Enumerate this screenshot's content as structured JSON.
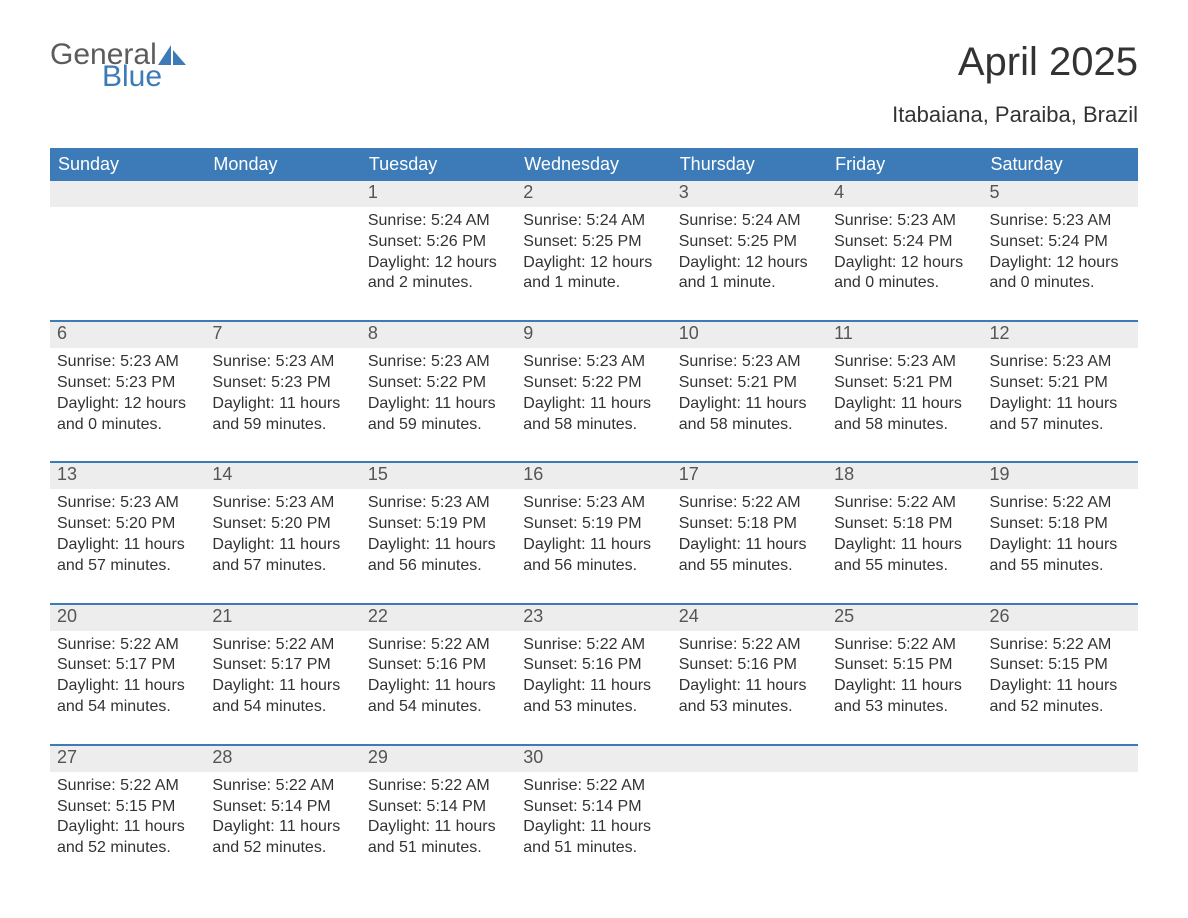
{
  "logo": {
    "word1": "General",
    "word2": "Blue",
    "word1_color": "#5c5c5c",
    "word2_color": "#3c7bb8"
  },
  "title": "April 2025",
  "location": "Itabaiana, Paraiba, Brazil",
  "colors": {
    "header_bg": "#3c7bb8",
    "header_text": "#ffffff",
    "daynum_bg": "#ededed",
    "daynum_text": "#555555",
    "body_text": "#333333",
    "week_border": "#3c7bb8",
    "page_bg": "#ffffff"
  },
  "fonts": {
    "title_size": 40,
    "location_size": 22,
    "weekday_size": 18,
    "daynum_size": 18,
    "body_size": 16
  },
  "weekdays": [
    "Sunday",
    "Monday",
    "Tuesday",
    "Wednesday",
    "Thursday",
    "Friday",
    "Saturday"
  ],
  "weeks": [
    [
      {
        "n": "",
        "sr": "",
        "ss": "",
        "dl": ""
      },
      {
        "n": "",
        "sr": "",
        "ss": "",
        "dl": ""
      },
      {
        "n": "1",
        "sr": "Sunrise: 5:24 AM",
        "ss": "Sunset: 5:26 PM",
        "dl": "Daylight: 12 hours and 2 minutes."
      },
      {
        "n": "2",
        "sr": "Sunrise: 5:24 AM",
        "ss": "Sunset: 5:25 PM",
        "dl": "Daylight: 12 hours and 1 minute."
      },
      {
        "n": "3",
        "sr": "Sunrise: 5:24 AM",
        "ss": "Sunset: 5:25 PM",
        "dl": "Daylight: 12 hours and 1 minute."
      },
      {
        "n": "4",
        "sr": "Sunrise: 5:23 AM",
        "ss": "Sunset: 5:24 PM",
        "dl": "Daylight: 12 hours and 0 minutes."
      },
      {
        "n": "5",
        "sr": "Sunrise: 5:23 AM",
        "ss": "Sunset: 5:24 PM",
        "dl": "Daylight: 12 hours and 0 minutes."
      }
    ],
    [
      {
        "n": "6",
        "sr": "Sunrise: 5:23 AM",
        "ss": "Sunset: 5:23 PM",
        "dl": "Daylight: 12 hours and 0 minutes."
      },
      {
        "n": "7",
        "sr": "Sunrise: 5:23 AM",
        "ss": "Sunset: 5:23 PM",
        "dl": "Daylight: 11 hours and 59 minutes."
      },
      {
        "n": "8",
        "sr": "Sunrise: 5:23 AM",
        "ss": "Sunset: 5:22 PM",
        "dl": "Daylight: 11 hours and 59 minutes."
      },
      {
        "n": "9",
        "sr": "Sunrise: 5:23 AM",
        "ss": "Sunset: 5:22 PM",
        "dl": "Daylight: 11 hours and 58 minutes."
      },
      {
        "n": "10",
        "sr": "Sunrise: 5:23 AM",
        "ss": "Sunset: 5:21 PM",
        "dl": "Daylight: 11 hours and 58 minutes."
      },
      {
        "n": "11",
        "sr": "Sunrise: 5:23 AM",
        "ss": "Sunset: 5:21 PM",
        "dl": "Daylight: 11 hours and 58 minutes."
      },
      {
        "n": "12",
        "sr": "Sunrise: 5:23 AM",
        "ss": "Sunset: 5:21 PM",
        "dl": "Daylight: 11 hours and 57 minutes."
      }
    ],
    [
      {
        "n": "13",
        "sr": "Sunrise: 5:23 AM",
        "ss": "Sunset: 5:20 PM",
        "dl": "Daylight: 11 hours and 57 minutes."
      },
      {
        "n": "14",
        "sr": "Sunrise: 5:23 AM",
        "ss": "Sunset: 5:20 PM",
        "dl": "Daylight: 11 hours and 57 minutes."
      },
      {
        "n": "15",
        "sr": "Sunrise: 5:23 AM",
        "ss": "Sunset: 5:19 PM",
        "dl": "Daylight: 11 hours and 56 minutes."
      },
      {
        "n": "16",
        "sr": "Sunrise: 5:23 AM",
        "ss": "Sunset: 5:19 PM",
        "dl": "Daylight: 11 hours and 56 minutes."
      },
      {
        "n": "17",
        "sr": "Sunrise: 5:22 AM",
        "ss": "Sunset: 5:18 PM",
        "dl": "Daylight: 11 hours and 55 minutes."
      },
      {
        "n": "18",
        "sr": "Sunrise: 5:22 AM",
        "ss": "Sunset: 5:18 PM",
        "dl": "Daylight: 11 hours and 55 minutes."
      },
      {
        "n": "19",
        "sr": "Sunrise: 5:22 AM",
        "ss": "Sunset: 5:18 PM",
        "dl": "Daylight: 11 hours and 55 minutes."
      }
    ],
    [
      {
        "n": "20",
        "sr": "Sunrise: 5:22 AM",
        "ss": "Sunset: 5:17 PM",
        "dl": "Daylight: 11 hours and 54 minutes."
      },
      {
        "n": "21",
        "sr": "Sunrise: 5:22 AM",
        "ss": "Sunset: 5:17 PM",
        "dl": "Daylight: 11 hours and 54 minutes."
      },
      {
        "n": "22",
        "sr": "Sunrise: 5:22 AM",
        "ss": "Sunset: 5:16 PM",
        "dl": "Daylight: 11 hours and 54 minutes."
      },
      {
        "n": "23",
        "sr": "Sunrise: 5:22 AM",
        "ss": "Sunset: 5:16 PM",
        "dl": "Daylight: 11 hours and 53 minutes."
      },
      {
        "n": "24",
        "sr": "Sunrise: 5:22 AM",
        "ss": "Sunset: 5:16 PM",
        "dl": "Daylight: 11 hours and 53 minutes."
      },
      {
        "n": "25",
        "sr": "Sunrise: 5:22 AM",
        "ss": "Sunset: 5:15 PM",
        "dl": "Daylight: 11 hours and 53 minutes."
      },
      {
        "n": "26",
        "sr": "Sunrise: 5:22 AM",
        "ss": "Sunset: 5:15 PM",
        "dl": "Daylight: 11 hours and 52 minutes."
      }
    ],
    [
      {
        "n": "27",
        "sr": "Sunrise: 5:22 AM",
        "ss": "Sunset: 5:15 PM",
        "dl": "Daylight: 11 hours and 52 minutes."
      },
      {
        "n": "28",
        "sr": "Sunrise: 5:22 AM",
        "ss": "Sunset: 5:14 PM",
        "dl": "Daylight: 11 hours and 52 minutes."
      },
      {
        "n": "29",
        "sr": "Sunrise: 5:22 AM",
        "ss": "Sunset: 5:14 PM",
        "dl": "Daylight: 11 hours and 51 minutes."
      },
      {
        "n": "30",
        "sr": "Sunrise: 5:22 AM",
        "ss": "Sunset: 5:14 PM",
        "dl": "Daylight: 11 hours and 51 minutes."
      },
      {
        "n": "",
        "sr": "",
        "ss": "",
        "dl": ""
      },
      {
        "n": "",
        "sr": "",
        "ss": "",
        "dl": ""
      },
      {
        "n": "",
        "sr": "",
        "ss": "",
        "dl": ""
      }
    ]
  ]
}
